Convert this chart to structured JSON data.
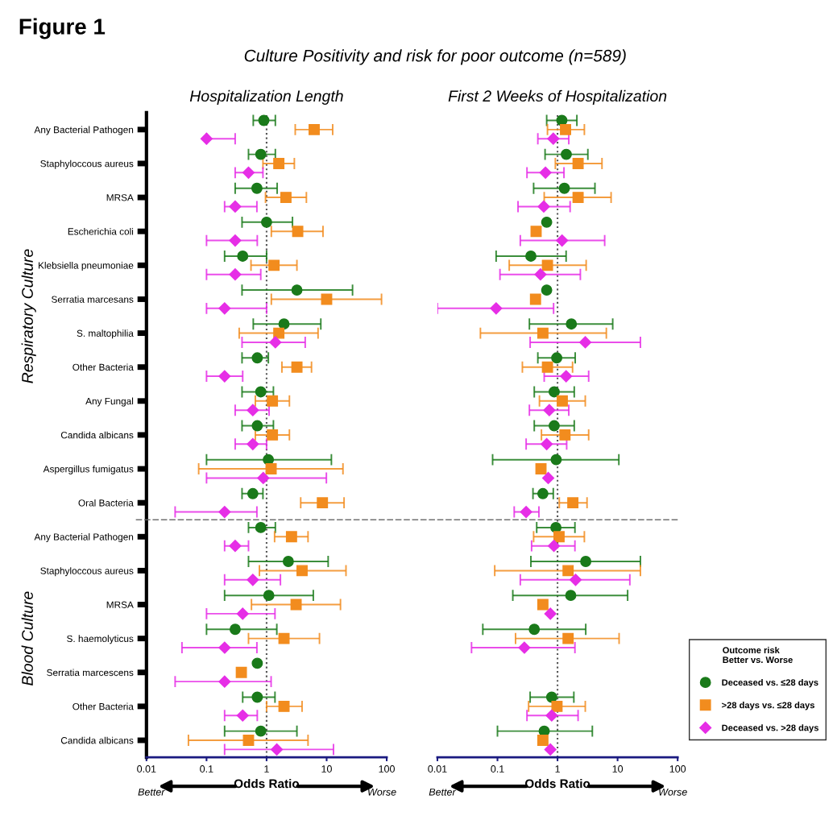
{
  "chart_data": [
    {
      "type": "scatter",
      "orientation": "horizontal",
      "title": "Hospitalization Length",
      "xlabel": "Odds Ratio",
      "log": "x",
      "xlim": [
        0.01,
        100
      ],
      "xticks": [
        0.01,
        0.1,
        1,
        10,
        100
      ],
      "grid": false,
      "legend": false,
      "categories": [
        "Any Bacterial Pathogen",
        "Staphyloccous aureus",
        "MRSA",
        "Escherichia coli",
        "Klebsiella pneumoniae",
        "Serratia marcesans",
        "S. maltophilia",
        "Other Bacteria",
        "Any Fungal",
        "Candida albicans",
        "Aspergillus fumigatus",
        "Oral Bacteria",
        "Any Bacterial Pathogen",
        "Staphyloccous aureus",
        "MRSA",
        "S. haemolyticus",
        "Serratia marcescens",
        "Other Bacteria",
        "Candida albicans"
      ],
      "series": [
        {
          "color": "#1a7a1a",
          "marker": "circle",
          "values": [
            0.9,
            0.8,
            0.69,
            1.0,
            0.4,
            3.2,
            1.95,
            0.7,
            0.8,
            0.7,
            1.07,
            0.59,
            0.8,
            2.3,
            1.09,
            0.3,
            0.7,
            0.7,
            0.8
          ],
          "errors": [
            [
              0.6,
              1.4
            ],
            [
              0.5,
              1.4
            ],
            [
              0.3,
              1.5
            ],
            [
              0.39,
              2.7
            ],
            [
              0.2,
              1.0
            ],
            [
              0.39,
              27
            ],
            [
              0.6,
              8.0
            ],
            [
              0.39,
              1.07
            ],
            [
              0.39,
              1.3
            ],
            [
              0.39,
              1.3
            ],
            [
              0.1,
              12
            ],
            [
              0.39,
              0.87
            ],
            [
              0.5,
              1.4
            ],
            [
              0.5,
              10.6
            ],
            [
              0.2,
              6.0
            ],
            [
              0.1,
              1.48
            ],
            null,
            [
              0.4,
              1.38
            ],
            [
              0.2,
              3.2
            ]
          ]
        },
        {
          "color": "#f28c1e",
          "marker": "square",
          "values": [
            6.2,
            1.6,
            2.1,
            3.3,
            1.33,
            10,
            1.6,
            3.2,
            1.25,
            1.25,
            1.19,
            8.5,
            2.6,
            3.9,
            3.1,
            1.95,
            0.38,
            1.95,
            0.5
          ],
          "errors": [
            [
              3.0,
              12.6
            ],
            [
              0.87,
              2.9
            ],
            [
              0.96,
              4.6
            ],
            [
              1.2,
              8.7
            ],
            [
              0.55,
              3.2
            ],
            [
              1.2,
              82
            ],
            [
              0.35,
              7.2
            ],
            [
              1.8,
              5.6
            ],
            [
              0.65,
              2.4
            ],
            [
              0.65,
              2.4
            ],
            [
              0.074,
              18.7
            ],
            [
              3.7,
              19.5
            ],
            [
              1.36,
              4.9
            ],
            [
              0.76,
              21
            ],
            [
              0.56,
              17
            ],
            [
              0.5,
              7.6
            ],
            null,
            [
              1.0,
              3.9
            ],
            [
              0.05,
              4.9
            ]
          ]
        },
        {
          "color": "#e62ee6",
          "marker": "diamond",
          "values": [
            0.1,
            0.5,
            0.3,
            0.3,
            0.3,
            0.2,
            1.4,
            0.2,
            0.59,
            0.59,
            0.88,
            0.2,
            0.3,
            0.59,
            0.4,
            0.2,
            0.2,
            0.4,
            1.48
          ],
          "errors": [
            [
              0.1,
              0.3
            ],
            [
              0.3,
              0.87
            ],
            [
              0.2,
              0.69
            ],
            [
              0.1,
              0.7
            ],
            [
              0.1,
              0.8
            ],
            [
              0.1,
              1.0
            ],
            [
              0.39,
              4.4
            ],
            [
              0.1,
              0.4
            ],
            [
              0.3,
              1.1
            ],
            [
              0.3,
              1.0
            ],
            [
              0.1,
              9.9
            ],
            [
              0.03,
              0.69
            ],
            [
              0.2,
              0.5
            ],
            [
              0.2,
              1.7
            ],
            [
              0.1,
              1.38
            ],
            [
              0.039,
              0.69
            ],
            [
              0.03,
              1.19
            ],
            [
              0.2,
              0.7
            ],
            [
              0.2,
              13
            ]
          ]
        }
      ],
      "ref_lines": [
        {
          "axis": "x",
          "value": 1,
          "line_style": "dotted",
          "color": "#555555"
        }
      ],
      "annotations": [
        "Figure 1",
        "Culture Positivity and risk for poor outcome (n=589)",
        "Respiratory Culture",
        "Blood Culture",
        "Better",
        "Worse"
      ]
    },
    {
      "type": "scatter",
      "orientation": "horizontal",
      "title": "First 2 Weeks of Hospitalization",
      "xlabel": "Odds Ratio",
      "log": "x",
      "xlim": [
        0.01,
        100
      ],
      "xticks": [
        0.01,
        0.1,
        1,
        10,
        100
      ],
      "grid": false,
      "legend": "bottom right",
      "legend_title": "Outcome risk\nBetter vs. Worse",
      "tick_labels": "x",
      "categories": [
        null,
        null,
        null,
        null,
        null,
        null,
        null,
        null,
        null,
        null,
        null,
        null,
        null,
        null,
        null,
        null,
        null,
        null,
        null
      ],
      "series": [
        {
          "name": "Deceased vs. ≤28 days",
          "color": "#1a7a1a",
          "marker": "circle",
          "values": [
            1.18,
            1.4,
            1.3,
            0.66,
            0.36,
            0.66,
            1.7,
            0.97,
            0.88,
            0.88,
            0.95,
            0.57,
            0.94,
            2.95,
            1.66,
            0.41,
            null,
            0.8,
            0.6
          ],
          "errors": [
            [
              0.66,
              2.1
            ],
            [
              0.62,
              3.2
            ],
            [
              0.4,
              4.2
            ],
            null,
            [
              0.095,
              1.39
            ],
            null,
            [
              0.34,
              8.3
            ],
            [
              0.47,
              1.97
            ],
            [
              0.41,
              1.9
            ],
            [
              0.41,
              1.9
            ],
            [
              0.083,
              10.5
            ],
            [
              0.39,
              0.85
            ],
            [
              0.45,
              1.95
            ],
            [
              0.36,
              24
            ],
            [
              0.18,
              14.7
            ],
            [
              0.057,
              2.95
            ],
            null,
            [
              0.35,
              1.87
            ],
            [
              0.1,
              3.8
            ]
          ]
        },
        {
          "name": ">28 days vs. ≤28 days",
          "color": "#f28c1e",
          "marker": "square",
          "values": [
            1.36,
            2.2,
            2.2,
            0.44,
            0.68,
            0.43,
            0.57,
            0.68,
            1.2,
            1.33,
            0.53,
            1.8,
            1.06,
            1.5,
            0.57,
            1.5,
            null,
            0.98,
            0.57
          ],
          "errors": [
            [
              0.68,
              2.8
            ],
            [
              0.92,
              5.5
            ],
            [
              0.6,
              7.8
            ],
            null,
            [
              0.157,
              3.0
            ],
            null,
            [
              0.052,
              6.5
            ],
            [
              0.26,
              1.78
            ],
            [
              0.5,
              2.9
            ],
            [
              0.54,
              3.3
            ],
            null,
            [
              1.07,
              3.1
            ],
            [
              0.4,
              2.8
            ],
            [
              0.09,
              24
            ],
            null,
            [
              0.2,
              10.6
            ],
            null,
            [
              0.33,
              2.9
            ],
            null
          ]
        },
        {
          "name": "Deceased vs. >28 days",
          "color": "#e62ee6",
          "marker": "diamond",
          "values": [
            0.85,
            0.63,
            0.59,
            1.19,
            0.52,
            0.095,
            2.9,
            1.39,
            0.73,
            0.66,
            0.7,
            0.3,
            0.87,
            2.0,
            0.76,
            0.28,
            null,
            0.8,
            0.76
          ],
          "errors": [
            [
              0.47,
              1.54
            ],
            [
              0.31,
              1.28
            ],
            [
              0.22,
              1.62
            ],
            [
              0.24,
              6.1
            ],
            [
              0.11,
              2.4
            ],
            [
              0.01,
              0.86
            ],
            [
              0.35,
              24
            ],
            [
              0.6,
              3.3
            ],
            [
              0.34,
              1.54
            ],
            [
              0.3,
              1.42
            ],
            null,
            [
              0.19,
              0.49
            ],
            [
              0.37,
              1.95
            ],
            [
              0.24,
              16
            ],
            null,
            [
              0.037,
              1.95
            ],
            null,
            [
              0.31,
              2.2
            ],
            null
          ]
        }
      ],
      "ref_lines": [
        {
          "axis": "x",
          "value": 1,
          "line_style": "dotted",
          "color": "#555555"
        }
      ],
      "annotations": [
        "Better",
        "Worse"
      ]
    }
  ]
}
